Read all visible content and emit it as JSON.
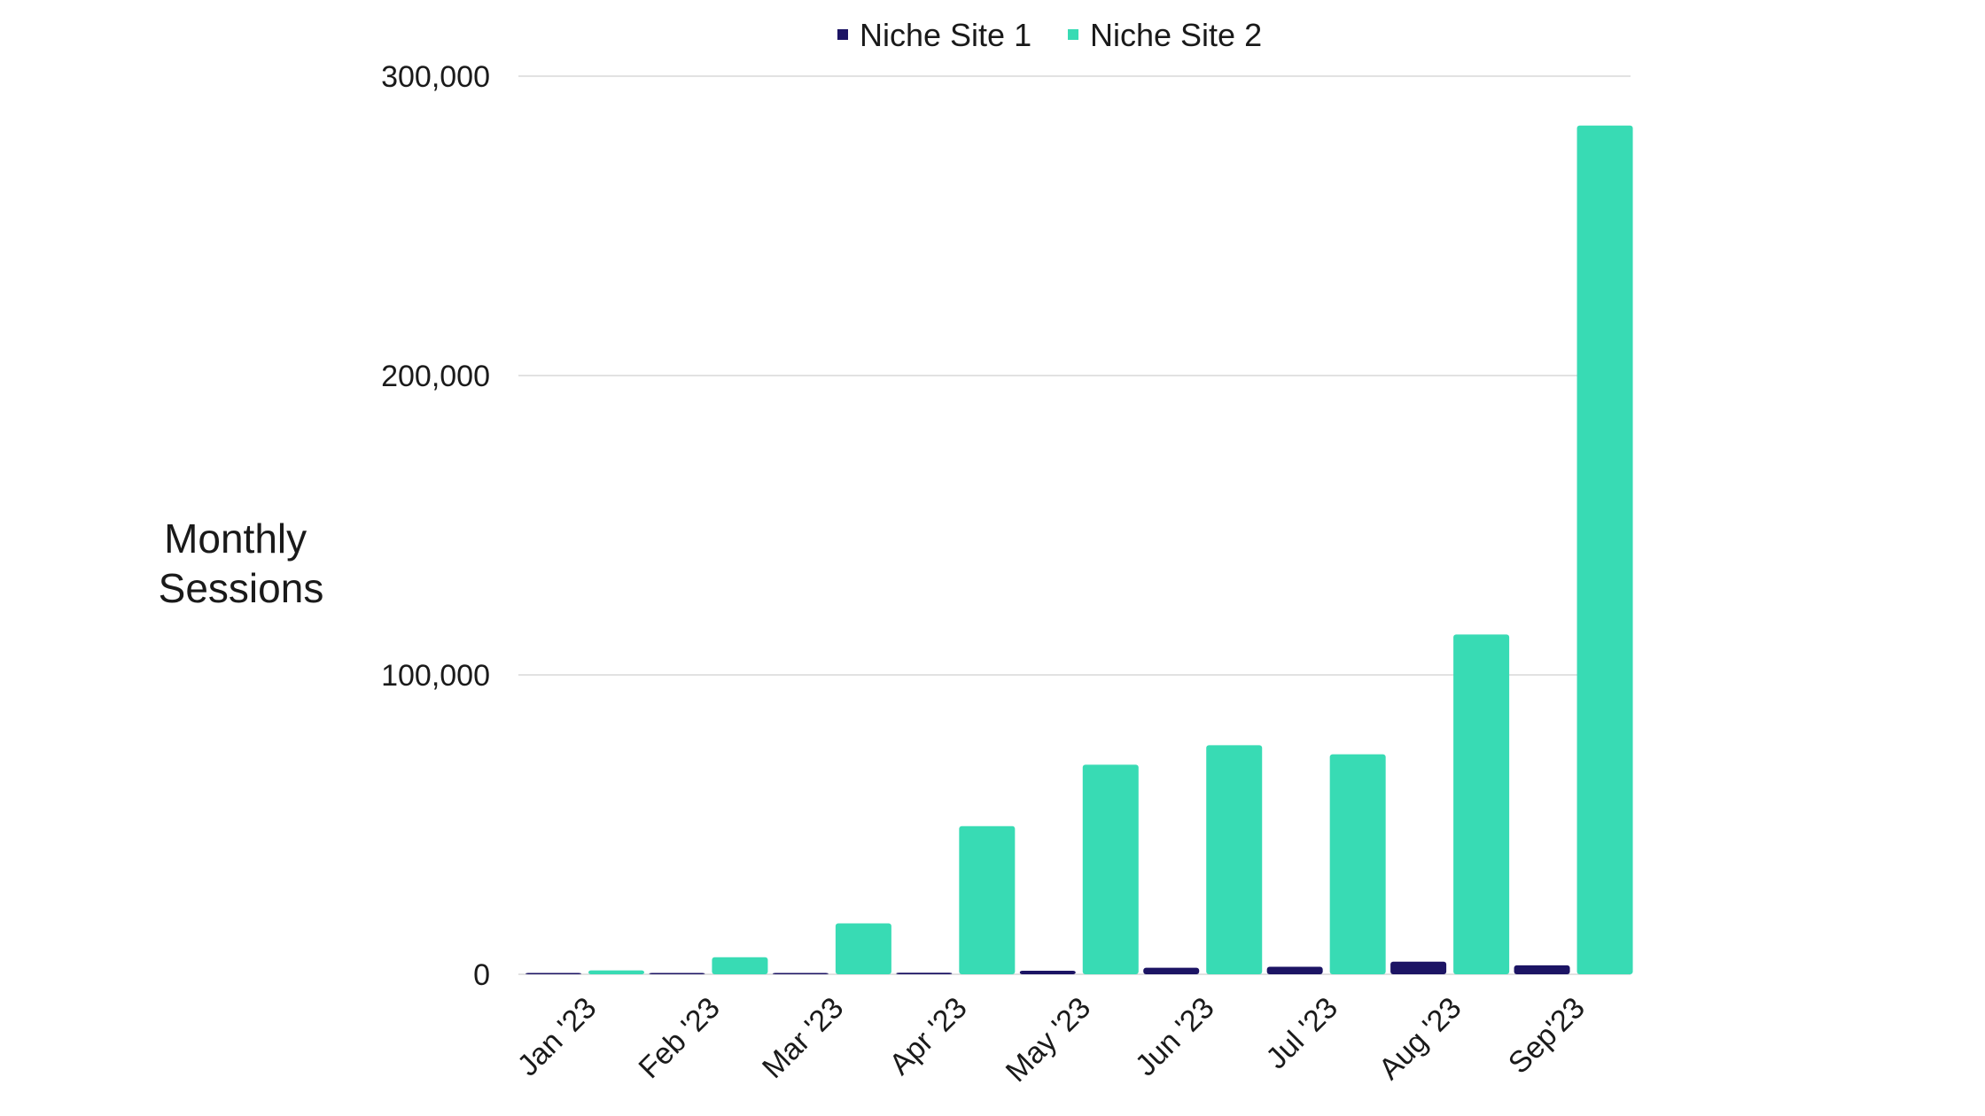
{
  "chart_data": {
    "type": "bar",
    "title": "",
    "xlabel": "",
    "ylabel": [
      "Monthly",
      "Sessions"
    ],
    "categories": [
      "Jan '23",
      "Feb '23",
      "Mar '23",
      "Apr '23",
      "May '23",
      "Jun '23",
      "Jul '23",
      "Aug '23",
      "Sep'23"
    ],
    "series": [
      {
        "name": "Niche Site 1",
        "color": "#1c1464",
        "values": [
          100,
          150,
          200,
          500,
          1200,
          2200,
          2500,
          4200,
          3000
        ]
      },
      {
        "name": "Niche Site 2",
        "color": "#38dbb4",
        "values": [
          1300,
          5700,
          17000,
          49500,
          70000,
          76500,
          73500,
          113500,
          283500
        ]
      }
    ],
    "ylim": [
      0,
      300000
    ],
    "yticks": [
      0,
      100000,
      200000,
      300000
    ],
    "ytick_labels": [
      "0",
      "100,000",
      "200,000",
      "300,000"
    ],
    "grid": true,
    "legend_position": "top-center",
    "gridline_color": "#d9d9d9"
  }
}
